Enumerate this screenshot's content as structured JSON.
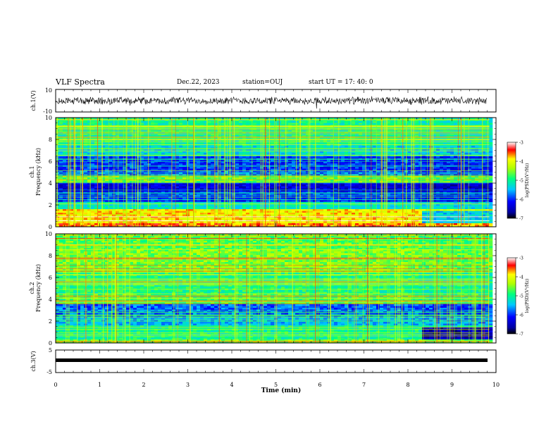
{
  "header": {
    "title": "VLF Spectra",
    "date": "Dec.22, 2023",
    "station": "station=OUJ",
    "start": "start  UT  =   17: 40: 0"
  },
  "chart_data": [
    {
      "type": "line",
      "panel": "ch1-waveform",
      "ylabel": "ch.1(V)",
      "ylim": [
        -10,
        10
      ],
      "yticks": [
        "10",
        "-10"
      ],
      "xlim": [
        0,
        10
      ]
    },
    {
      "type": "heatmap",
      "panel": "ch1-spectrogram",
      "ylabel_line1": "ch.1",
      "ylabel_line2": "Frequency  (kHz)",
      "ylim": [
        0,
        10
      ],
      "yticks": [
        "0",
        "2",
        "4",
        "6",
        "8",
        "10"
      ],
      "xlim": [
        0,
        10
      ],
      "data_end_min": 9.85,
      "colorbar": {
        "label": "log(PSD)(V²/Hz)",
        "range": [
          -7,
          -3
        ],
        "ticks": [
          "-3",
          "-4",
          "-5",
          "-6",
          "-7"
        ]
      }
    },
    {
      "type": "heatmap",
      "panel": "ch2-spectrogram",
      "ylabel_line1": "ch.2",
      "ylabel_line2": "Frequency  (kHz)",
      "ylim": [
        0,
        10
      ],
      "yticks": [
        "0",
        "2",
        "4",
        "6",
        "8",
        "10"
      ],
      "xlim": [
        0,
        10
      ],
      "data_end_min": 9.85,
      "colorbar": {
        "label": "log(PSD)(V²/Hz)",
        "range": [
          -7,
          -3
        ],
        "ticks": [
          "-3",
          "-4",
          "-5",
          "-6",
          "-7"
        ]
      }
    },
    {
      "type": "line",
      "panel": "ch3-waveform",
      "ylabel": "ch.3(V)",
      "ylim": [
        -5,
        5
      ],
      "yticks": [
        "5",
        "-5"
      ],
      "xlim": [
        0,
        10
      ],
      "xlabel": "Time  (min)",
      "xticks": [
        "0",
        "1",
        "2",
        "3",
        "4",
        "5",
        "6",
        "7",
        "8",
        "9",
        "10"
      ]
    }
  ]
}
